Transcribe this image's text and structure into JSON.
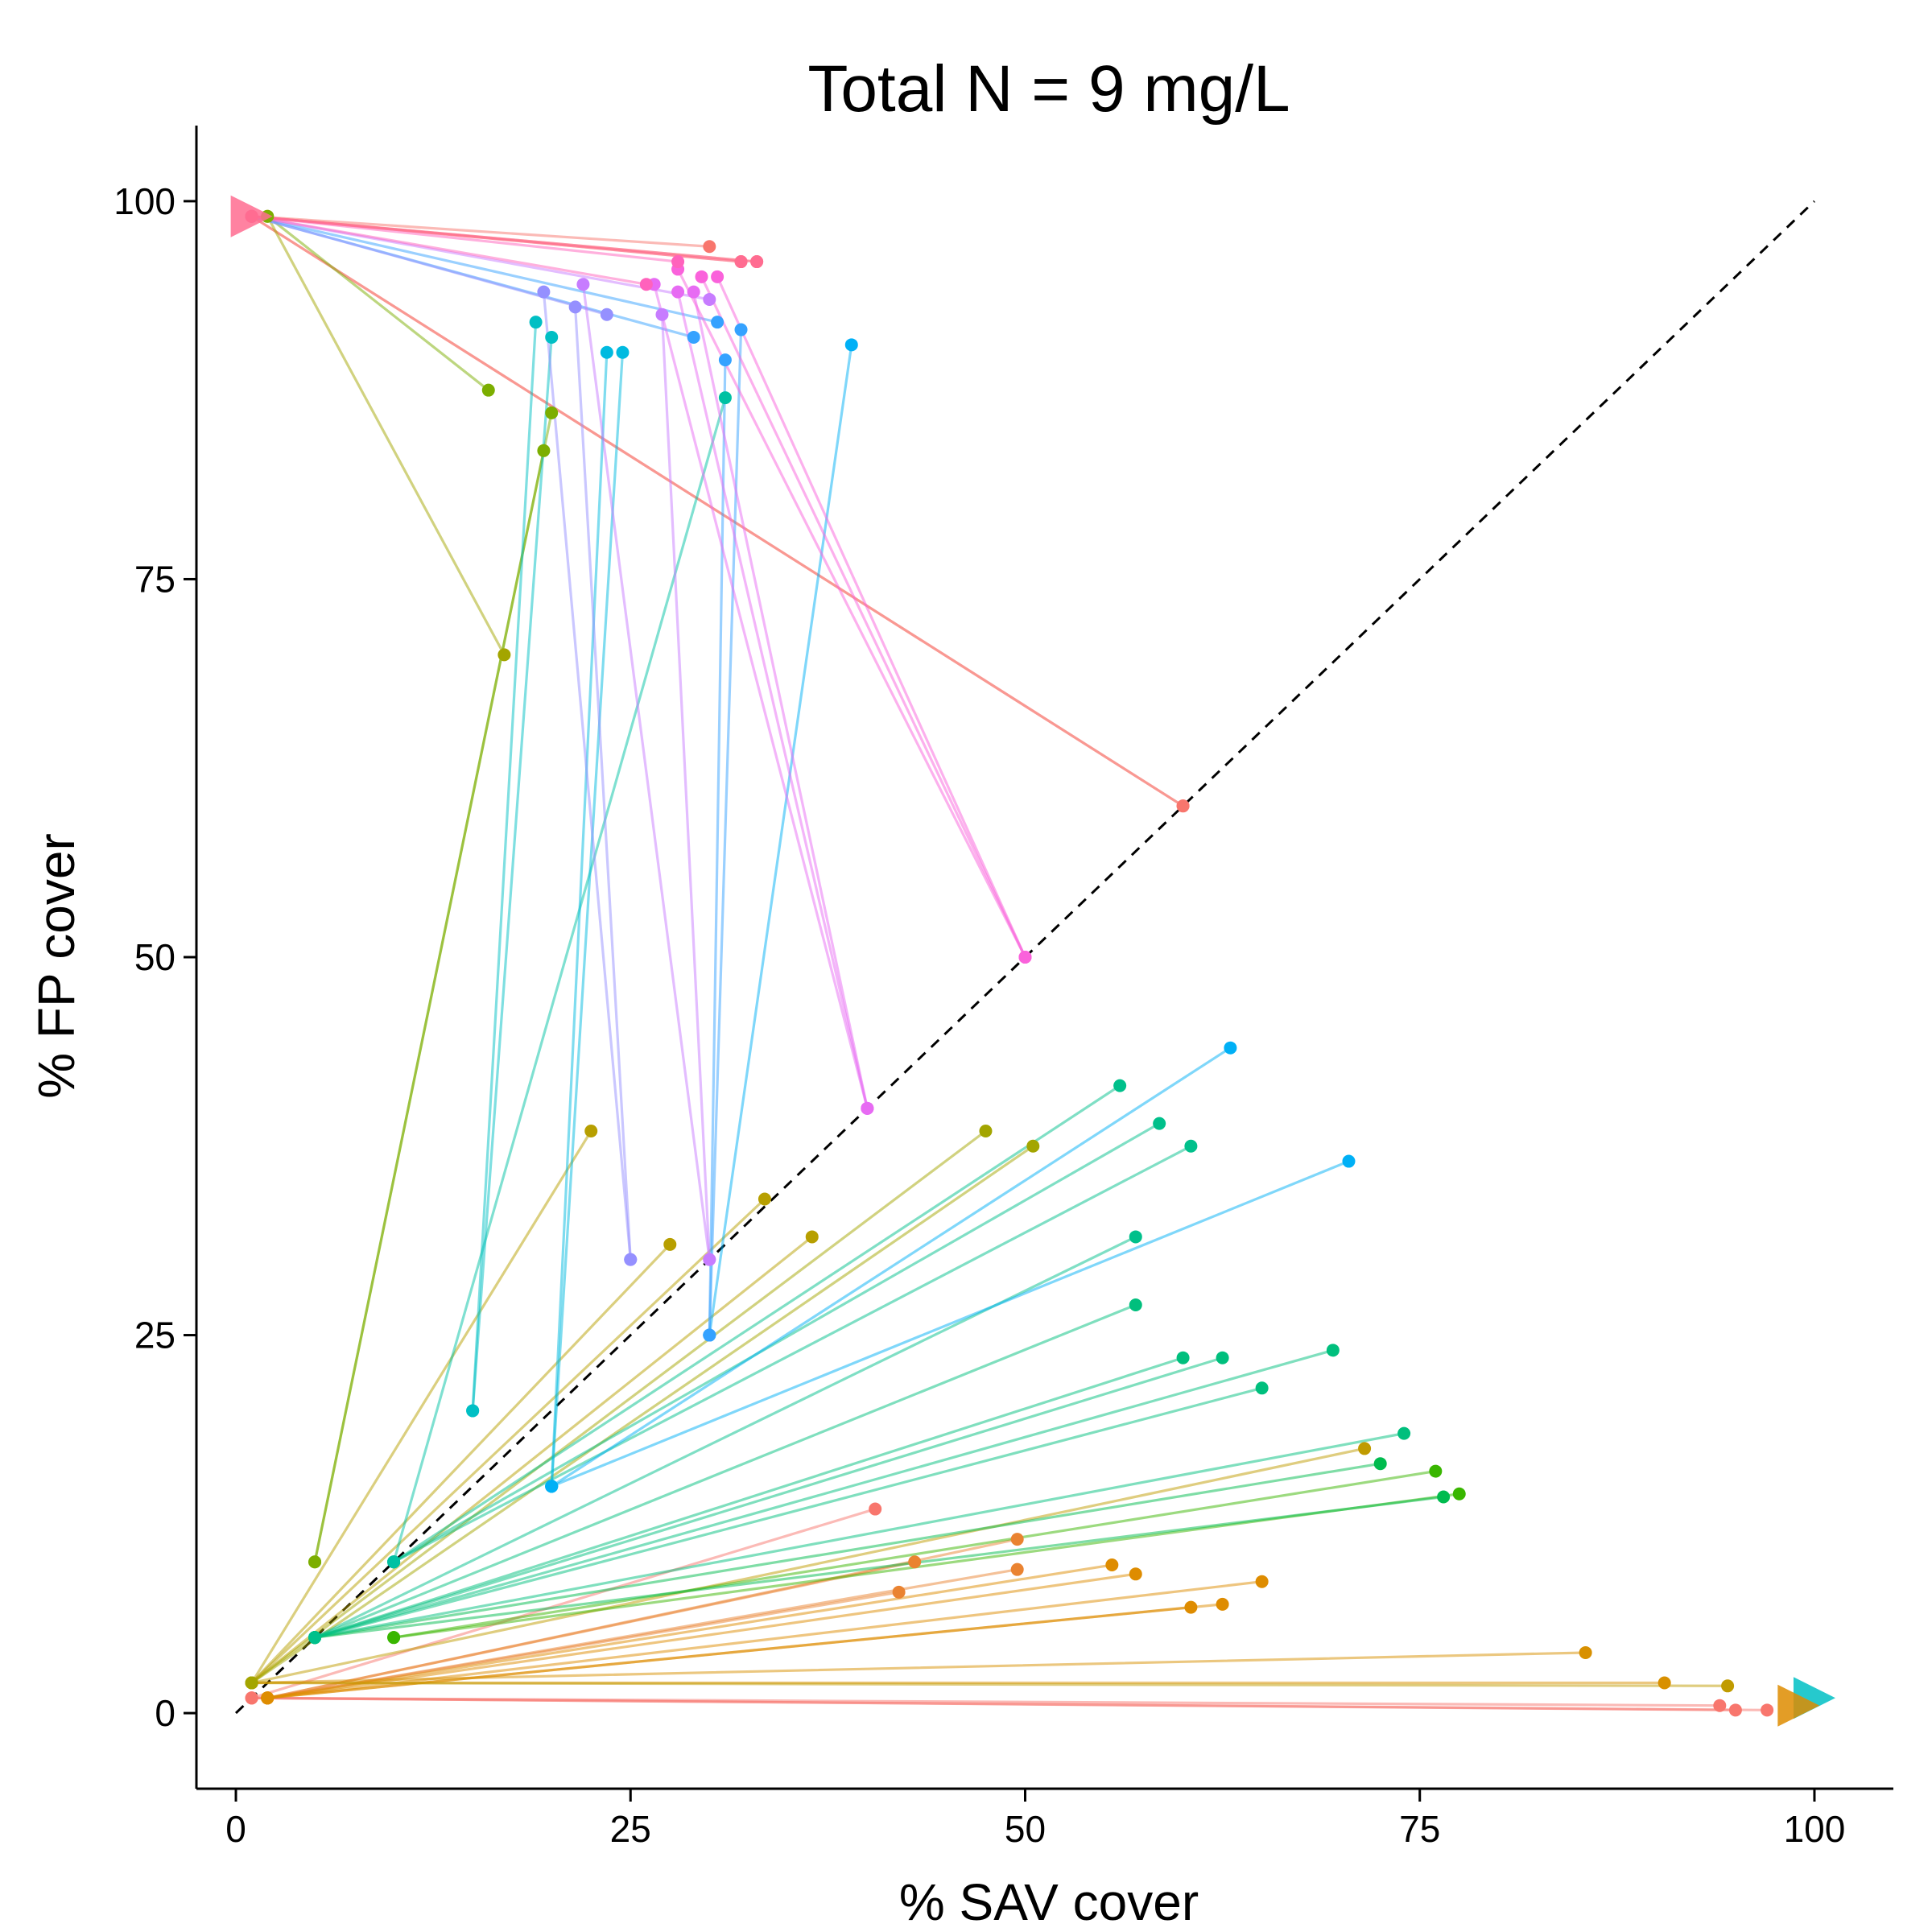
{
  "chart_data": {
    "type": "line",
    "title": "Total N = 9 mg/L",
    "xlabel": "% SAV cover",
    "ylabel": "% FP cover",
    "xlim": [
      -2.5,
      105
    ],
    "ylim": [
      -5,
      105
    ],
    "xticks": [
      0,
      25,
      50,
      75,
      100
    ],
    "yticks": [
      0,
      25,
      50,
      75,
      100
    ],
    "grid": false,
    "legend": "none",
    "reference_line": {
      "style": "dashed",
      "color": "#000000",
      "from": [
        0,
        0
      ],
      "to": [
        100,
        100
      ]
    },
    "series": [
      {
        "color": "#F8766D",
        "points": [
          [
            60,
            60
          ],
          [
            1,
            99
          ]
        ]
      },
      {
        "color": "#F8766D",
        "points": [
          [
            60,
            60
          ],
          [
            1,
            99
          ]
        ]
      },
      {
        "color": "#F8766D",
        "points": [
          [
            33,
            96
          ],
          [
            1,
            99
          ]
        ]
      },
      {
        "color": "#F8766D",
        "points": [
          [
            32,
            96
          ],
          [
            1,
            99
          ]
        ]
      },
      {
        "color": "#F8766D",
        "points": [
          [
            30,
            97
          ],
          [
            1,
            99
          ]
        ]
      },
      {
        "color": "#F8766D",
        "points": [
          [
            94,
            0.5
          ],
          [
            1,
            1
          ]
        ]
      },
      {
        "color": "#F8766D",
        "points": [
          [
            95,
            0.2
          ],
          [
            1,
            1
          ]
        ]
      },
      {
        "color": "#F8766D",
        "points": [
          [
            97,
            0.2
          ],
          [
            1,
            1
          ]
        ]
      },
      {
        "color": "#F8766D",
        "points": [
          [
            40.5,
            13.5
          ],
          [
            1,
            1
          ]
        ]
      },
      {
        "color": "#EA8331",
        "points": [
          [
            42,
            8
          ],
          [
            2,
            1
          ]
        ]
      },
      {
        "color": "#EA8331",
        "points": [
          [
            43,
            10
          ],
          [
            2,
            1
          ]
        ]
      },
      {
        "color": "#EA8331",
        "points": [
          [
            49.5,
            11.5
          ],
          [
            2,
            1
          ]
        ]
      },
      {
        "color": "#EA8331",
        "points": [
          [
            49.5,
            9.5
          ],
          [
            2,
            1
          ]
        ]
      },
      {
        "color": "#DE8C00",
        "points": [
          [
            55.5,
            9.8
          ],
          [
            2,
            1
          ]
        ]
      },
      {
        "color": "#DE8C00",
        "points": [
          [
            57,
            9.2
          ],
          [
            2,
            1
          ]
        ]
      },
      {
        "color": "#DE8C00",
        "points": [
          [
            60.5,
            7
          ],
          [
            2,
            1
          ]
        ]
      },
      {
        "color": "#DE8C00",
        "points": [
          [
            62.5,
            7.2
          ],
          [
            2,
            1
          ]
        ]
      },
      {
        "color": "#DE8C00",
        "points": [
          [
            65,
            8.7
          ],
          [
            2,
            1
          ]
        ]
      },
      {
        "color": "#D89000",
        "points": [
          [
            85.5,
            4
          ],
          [
            1,
            2
          ]
        ]
      },
      {
        "color": "#D89000",
        "points": [
          [
            90.5,
            2
          ],
          [
            1,
            2
          ]
        ]
      },
      {
        "color": "#C09B00",
        "points": [
          [
            94.5,
            1.8
          ],
          [
            1,
            2
          ]
        ]
      },
      {
        "color": "#C09B00",
        "points": [
          [
            71.5,
            17.5
          ],
          [
            1,
            2
          ]
        ]
      },
      {
        "color": "#B79F00",
        "points": [
          [
            36.5,
            31.5
          ],
          [
            1,
            2
          ]
        ]
      },
      {
        "color": "#B79F00",
        "points": [
          [
            33.5,
            34
          ],
          [
            1,
            2
          ]
        ]
      },
      {
        "color": "#B79F00",
        "points": [
          [
            27.5,
            31
          ],
          [
            1,
            2
          ]
        ]
      },
      {
        "color": "#B79F00",
        "points": [
          [
            22.5,
            38.5
          ],
          [
            1,
            2
          ]
        ]
      },
      {
        "color": "#A3A500",
        "points": [
          [
            17,
            70
          ],
          [
            2,
            99
          ]
        ]
      },
      {
        "color": "#A3A500",
        "points": [
          [
            47.5,
            38.5
          ],
          [
            1,
            2
          ]
        ]
      },
      {
        "color": "#A3A500",
        "points": [
          [
            50.5,
            37.5
          ],
          [
            1,
            2
          ]
        ]
      },
      {
        "color": "#7CAE00",
        "points": [
          [
            5,
            10
          ],
          [
            19.5,
            83.5
          ]
        ]
      },
      {
        "color": "#7CAE00",
        "points": [
          [
            5,
            10
          ],
          [
            20,
            86
          ]
        ]
      },
      {
        "color": "#7CAE00",
        "points": [
          [
            16,
            87.5
          ],
          [
            2,
            99
          ]
        ]
      },
      {
        "color": "#39B600",
        "points": [
          [
            77.5,
            14.5
          ],
          [
            10,
            5
          ]
        ]
      },
      {
        "color": "#39B600",
        "points": [
          [
            76,
            16
          ],
          [
            10,
            5
          ]
        ]
      },
      {
        "color": "#00BB4E",
        "points": [
          [
            76.5,
            14.3
          ],
          [
            5,
            5
          ]
        ]
      },
      {
        "color": "#00BB4E",
        "points": [
          [
            72.5,
            16.5
          ],
          [
            5,
            5
          ]
        ]
      },
      {
        "color": "#00BF7D",
        "points": [
          [
            74,
            18.5
          ],
          [
            5,
            5
          ]
        ]
      },
      {
        "color": "#00BF7D",
        "points": [
          [
            69.5,
            24
          ],
          [
            5,
            5
          ]
        ]
      },
      {
        "color": "#00BF7D",
        "points": [
          [
            65,
            21.5
          ],
          [
            5,
            5
          ]
        ]
      },
      {
        "color": "#00BF7D",
        "points": [
          [
            62.5,
            23.5
          ],
          [
            5,
            5
          ]
        ]
      },
      {
        "color": "#00BF7D",
        "points": [
          [
            60,
            23.5
          ],
          [
            5,
            5
          ]
        ]
      },
      {
        "color": "#00BF7D",
        "points": [
          [
            57,
            27
          ],
          [
            5,
            5
          ]
        ]
      },
      {
        "color": "#00C08B",
        "points": [
          [
            57,
            31.5
          ],
          [
            5,
            5
          ]
        ]
      },
      {
        "color": "#00C08B",
        "points": [
          [
            60.5,
            37.5
          ],
          [
            10,
            10
          ]
        ]
      },
      {
        "color": "#00C08B",
        "points": [
          [
            58.5,
            39
          ],
          [
            10,
            10
          ]
        ]
      },
      {
        "color": "#00C08B",
        "points": [
          [
            56,
            41.5
          ],
          [
            10,
            10
          ]
        ]
      },
      {
        "color": "#00C1A3",
        "points": [
          [
            31,
            87
          ],
          [
            10,
            10
          ]
        ]
      },
      {
        "color": "#00BFC4",
        "points": [
          [
            15,
            20
          ],
          [
            20,
            91
          ]
        ]
      },
      {
        "color": "#00BFC4",
        "points": [
          [
            15,
            20
          ],
          [
            19,
            92
          ]
        ]
      },
      {
        "color": "#00BAE0",
        "points": [
          [
            20,
            15
          ],
          [
            23.5,
            90
          ]
        ]
      },
      {
        "color": "#00BAE0",
        "points": [
          [
            20,
            15
          ],
          [
            24.5,
            90
          ]
        ]
      },
      {
        "color": "#00B0F6",
        "points": [
          [
            63,
            44
          ],
          [
            20,
            15
          ]
        ]
      },
      {
        "color": "#00B0F6",
        "points": [
          [
            70.5,
            36.5
          ],
          [
            20,
            15
          ]
        ]
      },
      {
        "color": "#00B0F6",
        "points": [
          [
            39,
            90.5
          ],
          [
            30,
            25
          ]
        ]
      },
      {
        "color": "#35A2FF",
        "points": [
          [
            31,
            89.5
          ],
          [
            30,
            25
          ]
        ]
      },
      {
        "color": "#35A2FF",
        "points": [
          [
            32,
            91.5
          ],
          [
            30,
            25
          ]
        ]
      },
      {
        "color": "#35A2FF",
        "points": [
          [
            29,
            91
          ],
          [
            1,
            99
          ]
        ]
      },
      {
        "color": "#35A2FF",
        "points": [
          [
            30.5,
            92
          ],
          [
            1,
            99
          ]
        ]
      },
      {
        "color": "#9590FF",
        "points": [
          [
            25,
            30
          ],
          [
            19.5,
            94
          ]
        ]
      },
      {
        "color": "#9590FF",
        "points": [
          [
            25,
            30
          ],
          [
            21.5,
            93
          ]
        ]
      },
      {
        "color": "#9590FF",
        "points": [
          [
            23.5,
            92.5
          ],
          [
            1,
            99
          ]
        ]
      },
      {
        "color": "#C77CFF",
        "points": [
          [
            30,
            30
          ],
          [
            22,
            94.5
          ]
        ]
      },
      {
        "color": "#C77CFF",
        "points": [
          [
            30,
            30
          ],
          [
            27,
            92.5
          ]
        ]
      },
      {
        "color": "#C77CFF",
        "points": [
          [
            30,
            93.5
          ],
          [
            1,
            99
          ]
        ]
      },
      {
        "color": "#E76BF3",
        "points": [
          [
            40,
            40
          ],
          [
            26.5,
            94.5
          ]
        ]
      },
      {
        "color": "#E76BF3",
        "points": [
          [
            40,
            40
          ],
          [
            28,
            94
          ]
        ]
      },
      {
        "color": "#E76BF3",
        "points": [
          [
            40,
            40
          ],
          [
            29,
            94
          ]
        ]
      },
      {
        "color": "#FA62DB",
        "points": [
          [
            50,
            50
          ],
          [
            28,
            95.5
          ]
        ]
      },
      {
        "color": "#FA62DB",
        "points": [
          [
            50,
            50
          ],
          [
            29.5,
            95
          ]
        ]
      },
      {
        "color": "#FA62DB",
        "points": [
          [
            50,
            50
          ],
          [
            30.5,
            95
          ]
        ]
      },
      {
        "color": "#FF62BC",
        "points": [
          [
            28,
            96
          ],
          [
            1,
            99
          ]
        ]
      },
      {
        "color": "#FF62BC",
        "points": [
          [
            26,
            94.5
          ],
          [
            1,
            99
          ]
        ]
      },
      {
        "color": "#FF6C91",
        "points": [
          [
            33,
            96
          ],
          [
            1,
            99
          ]
        ]
      },
      {
        "color": "#FF6C91",
        "points": [
          [
            32,
            96
          ],
          [
            1,
            99
          ]
        ]
      }
    ],
    "start_markers": [
      {
        "color": "#FF6C91",
        "point": [
          1,
          99
        ]
      },
      {
        "color": "#00BFC4",
        "point": [
          100,
          1
        ]
      },
      {
        "color": "#DE8C00",
        "point": [
          99,
          0.5
        ]
      }
    ]
  }
}
